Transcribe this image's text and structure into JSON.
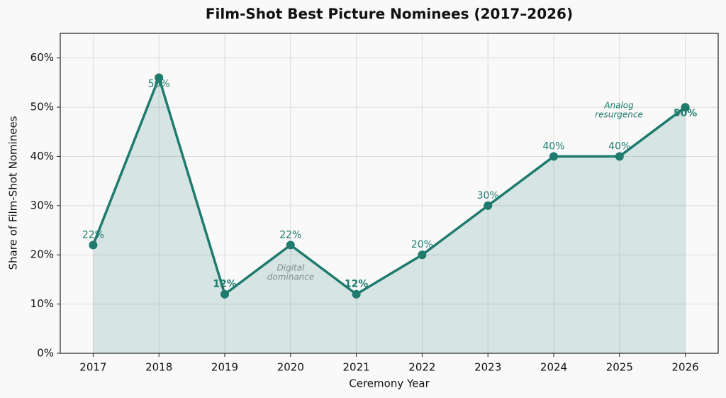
{
  "chart_data": {
    "type": "line",
    "title": "Film-Shot Best Picture Nominees (2017–2026)",
    "x_label": "Ceremony Year",
    "y_label": "Share of Film-Shot Nominees",
    "x": [
      2017,
      2018,
      2019,
      2020,
      2021,
      2022,
      2023,
      2024,
      2025,
      2026
    ],
    "series": [
      {
        "color": "#1e7b6e",
        "values": [
          22,
          56,
          12,
          22,
          12,
          20,
          30,
          40,
          40,
          50
        ],
        "value_labels": [
          "22%",
          "56%",
          "12%",
          "22%",
          "12%",
          "20%",
          "30%",
          "40%",
          "40%",
          "50%"
        ]
      }
    ],
    "xlim": [
      2016.5,
      2026.5
    ],
    "xticks": [
      2017,
      2018,
      2019,
      2020,
      2021,
      2022,
      2023,
      2024,
      2025,
      2026
    ],
    "ylim": [
      0,
      65
    ],
    "yticks": [
      {
        "value": 0,
        "label": "0%"
      },
      {
        "value": 10,
        "label": "10%"
      },
      {
        "value": 20,
        "label": "20%"
      },
      {
        "value": 30,
        "label": "30%"
      },
      {
        "value": 40,
        "label": "40%"
      },
      {
        "value": 50,
        "label": "50%"
      },
      {
        "value": 60,
        "label": "60%"
      }
    ],
    "grid": true,
    "annotations": [
      [
        "Digital",
        "dominance"
      ],
      [
        "Analog",
        "resurgence"
      ]
    ]
  }
}
